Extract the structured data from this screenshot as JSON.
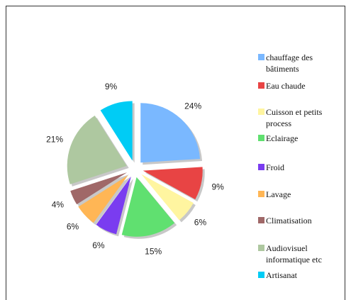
{
  "chart_data": {
    "type": "pie",
    "categories": [
      "chauffage des bâtiments",
      "Eau chaude",
      "Cuisson et petits process",
      "Eclairage",
      "Froid",
      "Lavage",
      "Climatisation",
      "Audiovisuel informatique etc",
      "Artisanat"
    ],
    "values": [
      24,
      9,
      6,
      15,
      6,
      6,
      4,
      21,
      9
    ],
    "value_labels": [
      "24%",
      "9%",
      "6%",
      "15%",
      "6%",
      "6%",
      "4%",
      "21%",
      "9%"
    ],
    "colors": [
      "#7ab8ff",
      "#e84444",
      "#fff5a0",
      "#60e070",
      "#7a3cf0",
      "#ffb655",
      "#a06868",
      "#aec8a0",
      "#00ccf5"
    ],
    "legend": "right"
  }
}
